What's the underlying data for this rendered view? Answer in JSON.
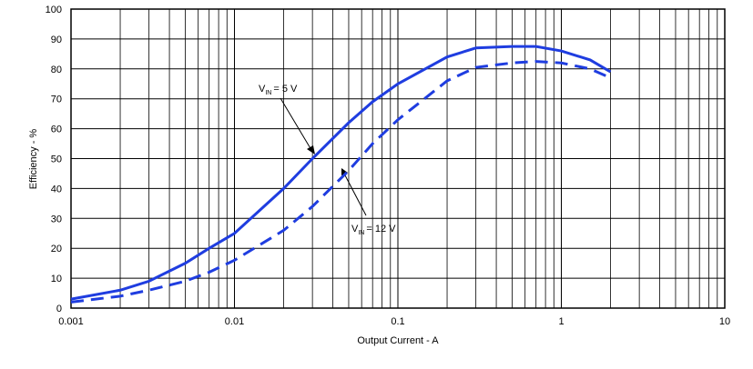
{
  "chart_data": {
    "type": "line",
    "xlabel": "Output Current - A",
    "ylabel": "Efficiency - %",
    "xscale": "log",
    "xlim": [
      0.001,
      10
    ],
    "xticks": [
      0.001,
      0.01,
      0.1,
      1,
      10
    ],
    "xminor_ticks": [
      0.002,
      0.003,
      0.004,
      0.005,
      0.006,
      0.007,
      0.008,
      0.009,
      0.02,
      0.03,
      0.04,
      0.05,
      0.06,
      0.07,
      0.08,
      0.09,
      0.2,
      0.3,
      0.4,
      0.5,
      0.6,
      0.7,
      0.8,
      0.9,
      2,
      3,
      4,
      5,
      6,
      7,
      8,
      9
    ],
    "ylim": [
      0,
      100
    ],
    "yticks": [
      0,
      10,
      20,
      30,
      40,
      50,
      60,
      70,
      80,
      90,
      100
    ],
    "grid": true,
    "series": [
      {
        "label": [
          "V",
          "IN",
          "= 5 V"
        ],
        "color": "#1f3de0",
        "dashed": false,
        "x": [
          0.001,
          0.002,
          0.003,
          0.005,
          0.007,
          0.01,
          0.02,
          0.03,
          0.05,
          0.07,
          0.1,
          0.2,
          0.3,
          0.5,
          0.7,
          1,
          1.5,
          2
        ],
        "values": [
          3,
          6,
          9,
          15,
          20,
          25,
          40,
          50,
          62,
          69,
          75,
          84,
          87,
          87.5,
          87.5,
          86,
          83,
          79
        ]
      },
      {
        "label": [
          "V",
          "IN",
          "= 12 V"
        ],
        "color": "#1f3de0",
        "dashed": true,
        "x": [
          0.001,
          0.002,
          0.003,
          0.005,
          0.007,
          0.01,
          0.02,
          0.03,
          0.05,
          0.07,
          0.1,
          0.2,
          0.3,
          0.5,
          0.7,
          1,
          1.5,
          2
        ],
        "values": [
          2,
          4,
          6,
          9,
          12,
          16,
          26,
          34,
          46,
          55,
          63,
          76,
          80.5,
          82,
          82.5,
          82,
          80,
          77
        ]
      }
    ]
  }
}
